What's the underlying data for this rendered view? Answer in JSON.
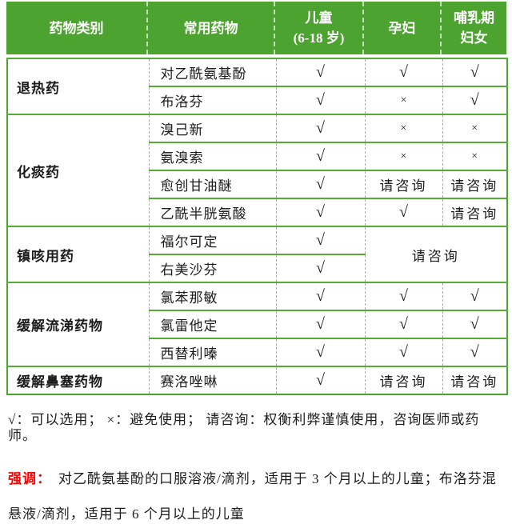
{
  "colors": {
    "header_green": "#4da32f",
    "line_green": "#55ab33",
    "dash_gray": "#aeaeae",
    "emphasis_red": "#ff0000",
    "header_text": "#ffffff"
  },
  "table": {
    "headers": [
      {
        "label": "药物类别"
      },
      {
        "label": "常用药物"
      },
      {
        "label": "儿童",
        "sub": "(6-18 岁)"
      },
      {
        "label": "孕妇"
      },
      {
        "label": "哺乳期",
        "sub": "妇女"
      }
    ],
    "column_meanings": [
      "drug-category",
      "common-drug",
      "children-6-18",
      "pregnant-women",
      "lactating-women"
    ],
    "groups": [
      {
        "category": "退热药",
        "rows": [
          {
            "drug": "对乙酰氨基酚",
            "marks": [
              "√",
              "√",
              "√"
            ]
          },
          {
            "drug": "布洛芬",
            "marks": [
              "√",
              "×",
              "√"
            ]
          }
        ]
      },
      {
        "category": "化痰药",
        "rows": [
          {
            "drug": "溴己新",
            "marks": [
              "√",
              "×",
              "×"
            ]
          },
          {
            "drug": "氨溴索",
            "marks": [
              "√",
              "×",
              "×"
            ]
          },
          {
            "drug": "愈创甘油醚",
            "marks": [
              "√",
              "请咨询",
              "请咨询"
            ]
          },
          {
            "drug": "乙酰半胱氨酸",
            "marks": [
              "√",
              "√",
              "请咨询"
            ]
          }
        ]
      },
      {
        "category": "镇咳用药",
        "merged": "请咨询",
        "rows": [
          {
            "drug": "福尔可定",
            "marks": [
              "√"
            ]
          },
          {
            "drug": "右美沙芬",
            "marks": [
              "√"
            ]
          }
        ]
      },
      {
        "category": "缓解流涕药物",
        "rows": [
          {
            "drug": "氯苯那敏",
            "marks": [
              "√",
              "√",
              "√"
            ]
          },
          {
            "drug": "氯雷他定",
            "marks": [
              "√",
              "√",
              "√"
            ]
          },
          {
            "drug": "西替利嗪",
            "marks": [
              "√",
              "√",
              "√"
            ]
          }
        ]
      },
      {
        "category": "缓解鼻塞药物",
        "rows": [
          {
            "drug": "赛洛唑啉",
            "marks": [
              "√",
              "请咨询",
              "请咨询"
            ]
          }
        ]
      }
    ]
  },
  "notes": {
    "legend": "√：可以选用； ×：避免使用； 请咨询：权衡利弊谨慎使用，咨询医师或药师。",
    "emphasis_label": "强调：",
    "emphasis_text": "对乙酰氨基酚的口服溶液/滴剂，适用于 3 个月以上的儿童；布洛芬混悬液/滴剂，适用于 6 个月以上的儿童"
  }
}
